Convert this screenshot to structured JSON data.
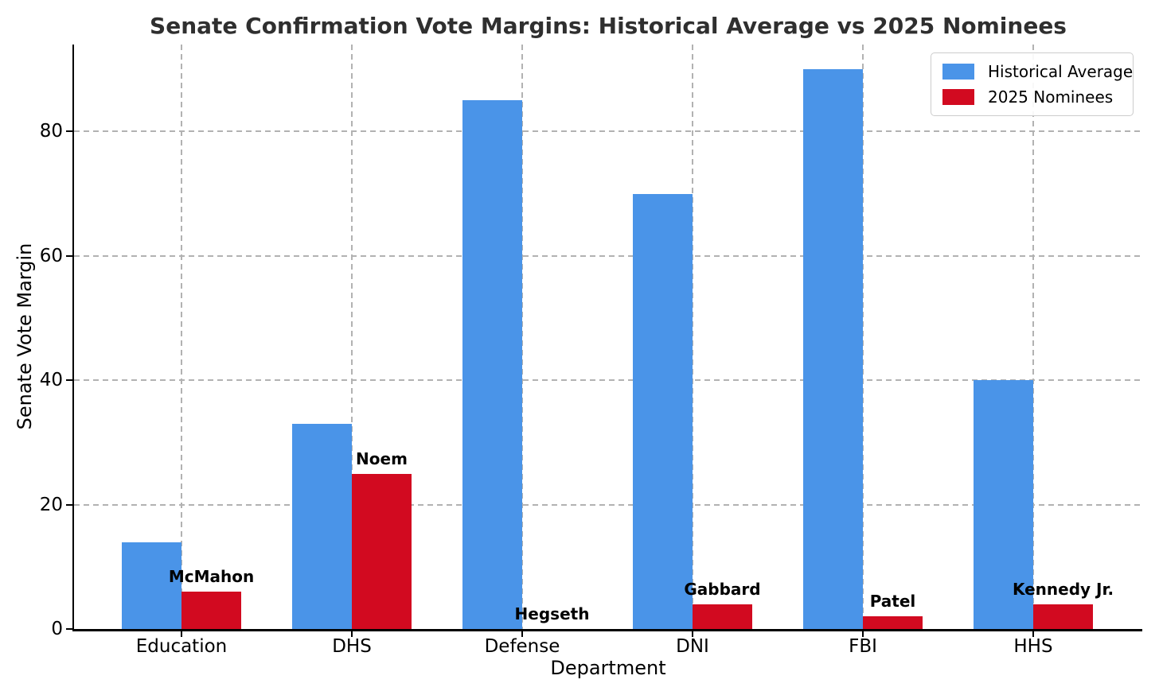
{
  "chart_data": {
    "type": "bar",
    "title": "Senate Confirmation Vote Margins: Historical Average vs 2025 Nominees",
    "xlabel": "Department",
    "ylabel": "Senate Vote Margin",
    "categories": [
      "Education",
      "DHS",
      "Defense",
      "DNI",
      "FBI",
      "HHS"
    ],
    "series": [
      {
        "name": "Historical Average",
        "color": "#4A94E8",
        "values": [
          14,
          33,
          85,
          70,
          90,
          40
        ]
      },
      {
        "name": "2025 Nominees",
        "color": "#D20A20",
        "values": [
          6,
          25,
          0,
          4,
          2,
          4
        ]
      }
    ],
    "bar_labels": [
      "McMahon",
      "Noem",
      "Hegseth",
      "Gabbard",
      "Patel",
      "Kennedy Jr."
    ],
    "yticks": [
      0,
      20,
      40,
      60,
      80
    ],
    "ylim": [
      0,
      94
    ],
    "grid": true,
    "legend_position": "upper right"
  },
  "colors": {
    "grid": "#b2b2b2",
    "axis": "#000000",
    "title": "#2f2f2f",
    "background": "#ffffff"
  }
}
